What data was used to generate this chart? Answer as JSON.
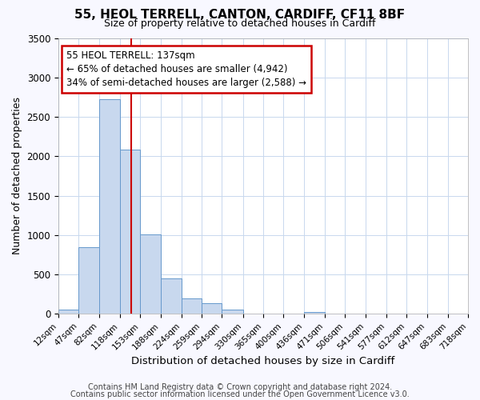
{
  "title": "55, HEOL TERRELL, CANTON, CARDIFF, CF11 8BF",
  "subtitle": "Size of property relative to detached houses in Cardiff",
  "xlabel": "Distribution of detached houses by size in Cardiff",
  "ylabel": "Number of detached properties",
  "footnote1": "Contains HM Land Registry data © Crown copyright and database right 2024.",
  "footnote2": "Contains public sector information licensed under the Open Government Licence v3.0.",
  "bin_edges": [
    12,
    47,
    82,
    118,
    153,
    188,
    224,
    259,
    294,
    330,
    365,
    400,
    436,
    471,
    506,
    541,
    577,
    612,
    647,
    683,
    718
  ],
  "bin_labels": [
    "12sqm",
    "47sqm",
    "82sqm",
    "118sqm",
    "153sqm",
    "188sqm",
    "224sqm",
    "259sqm",
    "294sqm",
    "330sqm",
    "365sqm",
    "400sqm",
    "436sqm",
    "471sqm",
    "506sqm",
    "541sqm",
    "577sqm",
    "612sqm",
    "647sqm",
    "683sqm",
    "718sqm"
  ],
  "bar_heights": [
    50,
    850,
    2720,
    2080,
    1010,
    450,
    200,
    140,
    50,
    0,
    0,
    0,
    20,
    0,
    0,
    0,
    0,
    0,
    0,
    0
  ],
  "bar_color": "#c8d8ee",
  "bar_edge_color": "#6699cc",
  "vline_x": 137,
  "vline_color": "#cc0000",
  "annotation_line1": "55 HEOL TERRELL: 137sqm",
  "annotation_line2": "← 65% of detached houses are smaller (4,942)",
  "annotation_line3": "34% of semi-detached houses are larger (2,588) →",
  "annotation_box_facecolor": "#ffffff",
  "annotation_box_edgecolor": "#cc0000",
  "ylim": [
    0,
    3500
  ],
  "yticks": [
    0,
    500,
    1000,
    1500,
    2000,
    2500,
    3000,
    3500
  ],
  "fig_bg_color": "#f8f8ff",
  "plot_bg_color": "#ffffff",
  "grid_color": "#c8d8ee",
  "title_fontsize": 11,
  "subtitle_fontsize": 9
}
